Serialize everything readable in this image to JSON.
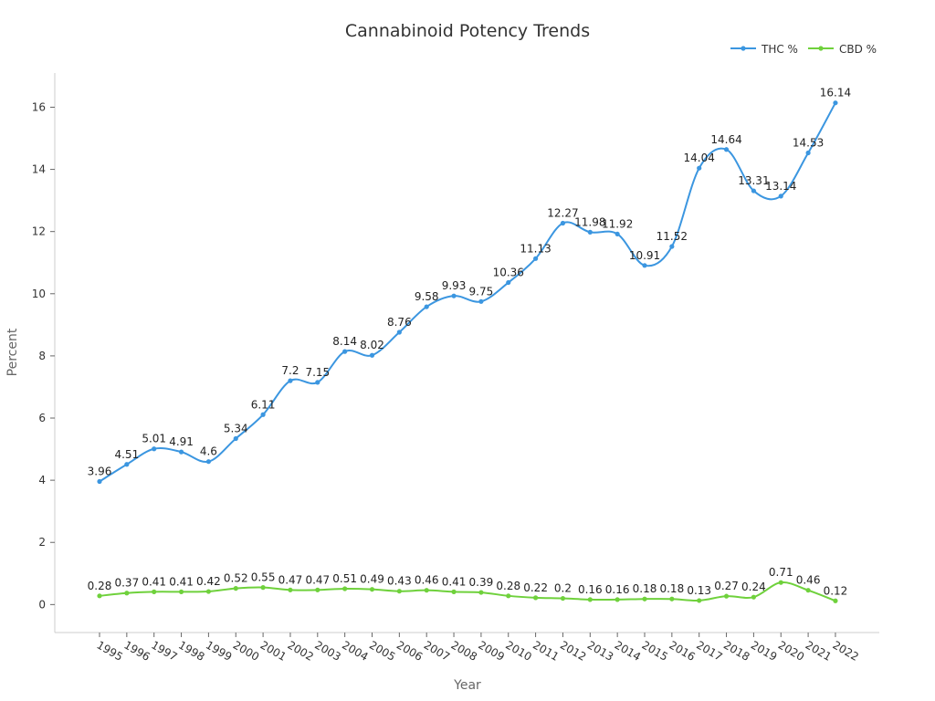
{
  "chart_data": {
    "type": "line",
    "title": "Cannabinoid Potency Trends",
    "xlabel": "Year",
    "ylabel": "Percent",
    "ylim": [
      -0.9,
      17.1
    ],
    "yticks": [
      0,
      2,
      4,
      6,
      8,
      10,
      12,
      14,
      16
    ],
    "grid": false,
    "legend_position": "top-right",
    "categories": [
      "1995",
      "1996",
      "1997",
      "1998",
      "1999",
      "2000",
      "2001",
      "2002",
      "2003",
      "2004",
      "2005",
      "2006",
      "2007",
      "2008",
      "2009",
      "2010",
      "2011",
      "2012",
      "2013",
      "2014",
      "2015",
      "2016",
      "2017",
      "2018",
      "2019",
      "2020",
      "2021",
      "2022"
    ],
    "series": [
      {
        "name": "THC %",
        "color": "#3b96e0",
        "values": [
          3.96,
          4.51,
          5.01,
          4.91,
          4.6,
          5.34,
          6.11,
          7.2,
          7.15,
          8.14,
          8.02,
          8.76,
          9.58,
          9.93,
          9.75,
          10.36,
          11.13,
          12.27,
          11.98,
          11.92,
          10.91,
          11.52,
          14.04,
          14.64,
          13.31,
          13.14,
          14.53,
          16.14
        ]
      },
      {
        "name": "CBD %",
        "color": "#6fd13c",
        "values": [
          0.28,
          0.37,
          0.41,
          0.41,
          0.42,
          0.52,
          0.55,
          0.47,
          0.47,
          0.51,
          0.49,
          0.43,
          0.46,
          0.41,
          0.39,
          0.28,
          0.22,
          0.2,
          0.16,
          0.16,
          0.18,
          0.18,
          0.13,
          0.27,
          0.24,
          0.71,
          0.46,
          0.12
        ]
      }
    ]
  }
}
